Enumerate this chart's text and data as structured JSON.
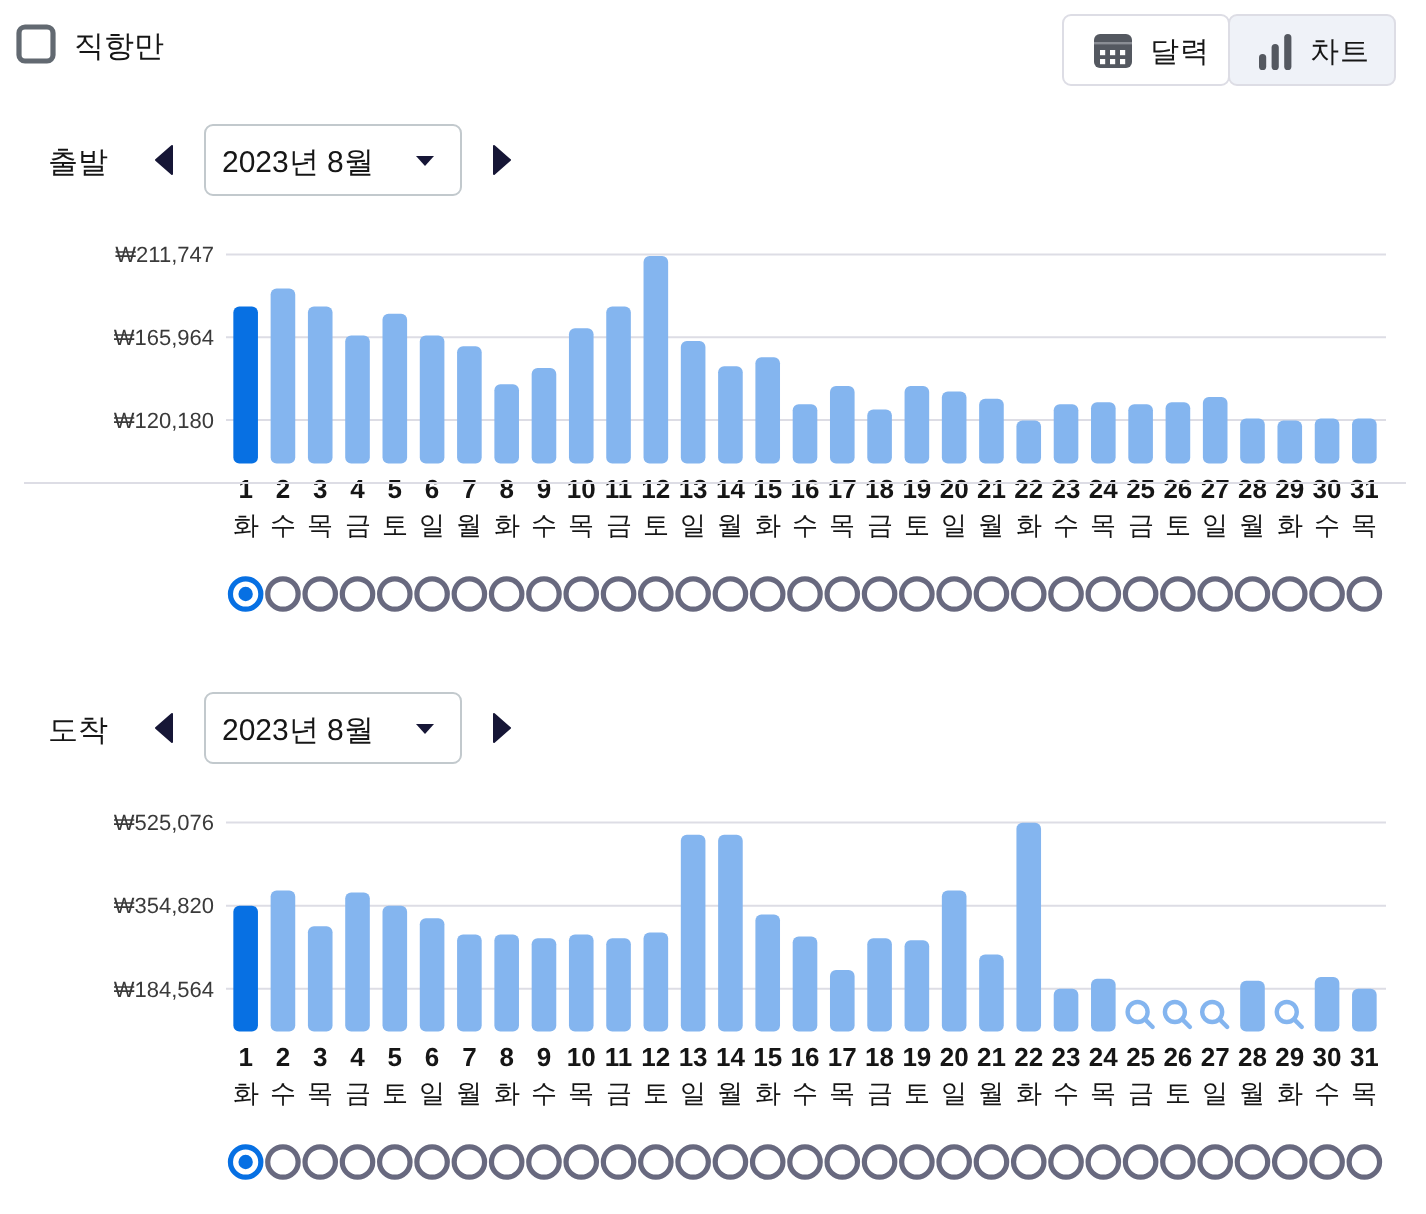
{
  "chart_data": [
    {
      "type": "other",
      "annotations": [
        "직항만",
        "달력",
        "차트"
      ]
    },
    {
      "type": "bar",
      "title": "출발",
      "subtitle": "2023년 8월",
      "categories": [
        "1\n화",
        "2\n수",
        "3\n목",
        "4\n금",
        "5\n토",
        "6\n일",
        "7\n월",
        "8\n화",
        "9\n수",
        "10\n목",
        "11\n금",
        "12\n토",
        "13\n일",
        "14\n월",
        "15\n화",
        "16\n수",
        "17\n목",
        "18\n금",
        "19\n토",
        "20\n일",
        "21\n월",
        "22\n화",
        "23\n수",
        "24\n목",
        "25\n금",
        "26\n토",
        "27\n일",
        "28\n월",
        "29\n화",
        "30\n수",
        "31\n목"
      ],
      "values": [
        183000,
        193000,
        183000,
        167000,
        179000,
        167000,
        161000,
        140000,
        149000,
        171000,
        183000,
        211000,
        164000,
        150000,
        155000,
        129000,
        139000,
        126000,
        139000,
        136000,
        132000,
        120000,
        129000,
        130000,
        129000,
        130000,
        133000,
        121000,
        120000,
        121000,
        121000
      ],
      "colors": [
        "#0770e3",
        "#84b5ef",
        "#84b5ef",
        "#84b5ef",
        "#84b5ef",
        "#84b5ef",
        "#84b5ef",
        "#84b5ef",
        "#84b5ef",
        "#84b5ef",
        "#84b5ef",
        "#84b5ef",
        "#84b5ef",
        "#84b5ef",
        "#84b5ef",
        "#84b5ef",
        "#84b5ef",
        "#84b5ef",
        "#84b5ef",
        "#84b5ef",
        "#84b5ef",
        "#84b5ef",
        "#84b5ef",
        "#84b5ef",
        "#84b5ef",
        "#84b5ef",
        "#84b5ef",
        "#84b5ef",
        "#84b5ef",
        "#84b5ef",
        "#84b5ef"
      ],
      "ylim": [
        96200,
        211747
      ],
      "yticks": [
        {
          "value": 120180,
          "label": "₩120,180"
        },
        {
          "value": 165964,
          "label": "₩165,964"
        },
        {
          "value": 211747,
          "label": "₩211,747"
        }
      ],
      "grid": "y"
    },
    {
      "type": "bar",
      "title": "도착",
      "subtitle": "2023년 8월",
      "categories": [
        "1\n화",
        "2\n수",
        "3\n목",
        "4\n금",
        "5\n토",
        "6\n일",
        "7\n월",
        "8\n화",
        "9\n수",
        "10\n목",
        "11\n금",
        "12\n토",
        "13\n일",
        "14\n월",
        "15\n화",
        "16\n수",
        "17\n목",
        "18\n금",
        "19\n토",
        "20\n일",
        "21\n월",
        "22\n화",
        "23\n수",
        "24\n목",
        "25\n금",
        "26\n토",
        "27\n일",
        "28\n월",
        "29\n화",
        "30\n수",
        "31\n목"
      ],
      "values": [
        355000,
        386000,
        313000,
        382000,
        355000,
        329000,
        296000,
        296000,
        288000,
        296000,
        288000,
        300000,
        500000,
        500000,
        337000,
        292000,
        223000,
        288000,
        284000,
        386000,
        255000,
        525000,
        185000,
        205000,
        null,
        null,
        null,
        201000,
        null,
        209000,
        185000
      ],
      "colors": [
        "#0770e3",
        "#84b5ef",
        "#84b5ef",
        "#84b5ef",
        "#84b5ef",
        "#84b5ef",
        "#84b5ef",
        "#84b5ef",
        "#84b5ef",
        "#84b5ef",
        "#84b5ef",
        "#84b5ef",
        "#84b5ef",
        "#84b5ef",
        "#84b5ef",
        "#84b5ef",
        "#84b5ef",
        "#84b5ef",
        "#84b5ef",
        "#84b5ef",
        "#84b5ef",
        "#84b5ef",
        "#84b5ef",
        "#84b5ef",
        "#84b5ef",
        "#84b5ef",
        "#84b5ef",
        "#84b5ef",
        "#84b5ef",
        "#84b5ef",
        "#84b5ef"
      ],
      "ylim": [
        97400,
        525076
      ],
      "yticks": [
        {
          "value": 184564,
          "label": "₩184,564"
        },
        {
          "value": 354820,
          "label": "₩354,820"
        },
        {
          "value": 525076,
          "label": "₩525,076"
        }
      ],
      "grid": "y"
    }
  ]
}
